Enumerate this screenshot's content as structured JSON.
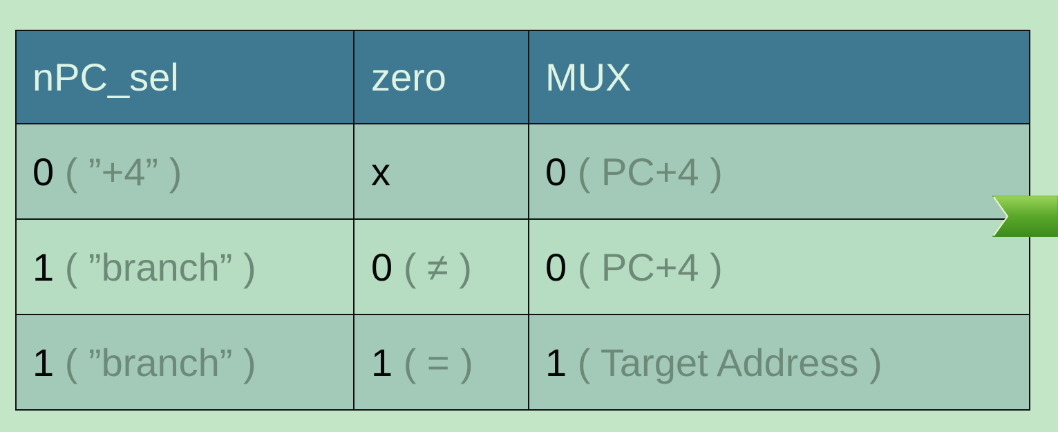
{
  "table": {
    "headers": [
      "nPC_sel",
      "zero",
      "MUX"
    ],
    "rows": [
      [
        {
          "value": "0",
          "note": " ( ”+4” )"
        },
        {
          "value": "x",
          "note": ""
        },
        {
          "value": "0",
          "note": " ( PC+4 )"
        }
      ],
      [
        {
          "value": "1",
          "note": " ( ”branch” )"
        },
        {
          "value": "0",
          "note": " ( ≠ )"
        },
        {
          "value": "0",
          "note": " ( PC+4 )"
        }
      ],
      [
        {
          "value": "1",
          "note": " ( ”branch” )"
        },
        {
          "value": "1",
          "note": " ( = )"
        },
        {
          "value": "1",
          "note": " ( Target Address )"
        }
      ]
    ]
  },
  "colors": {
    "background": "#c3e6c6",
    "header": "#3e7891",
    "header_text": "#ddf3e3",
    "row_dark": "#a3c9b9",
    "row_light": "#b6ddc1",
    "note_text": "#6d8a78",
    "arrow": "#5aa82a"
  },
  "icons": {
    "next_arrow": "chevron-arrow-right-icon"
  }
}
